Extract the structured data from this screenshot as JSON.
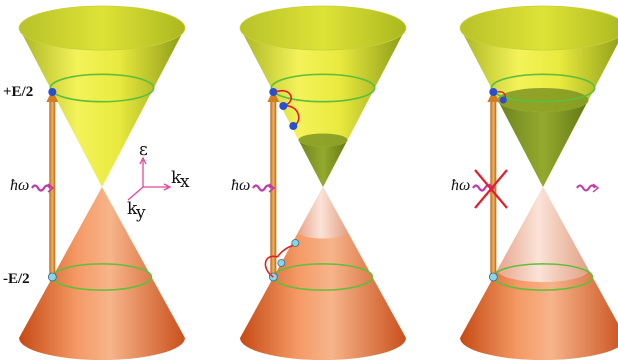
{
  "labels": {
    "energy_plus": "+E/2",
    "energy_minus": "-E/2",
    "photon": "ħω",
    "axis_energy": "ε",
    "axis_kx": "k",
    "axis_kx_sub": "x",
    "axis_ky": "k",
    "axis_ky_sub": "y"
  },
  "colors": {
    "upper_cone_light": "#f2f055",
    "upper_cone_dark": "#7a8d17",
    "lower_cone_light": "#ffd8c0",
    "lower_cone_dark": "#d2541d",
    "depleted_lower": "#f6d2c6",
    "filled_upper_green": "#6f8a1d",
    "ring_color": "#5fbf3a",
    "arrow_color": "#e0932f",
    "dot_blue": "#2a4fc8",
    "dot_cyan": "#8fd3e8",
    "relax_path": "#e02020",
    "photon_wave": "#c03aa8",
    "axis_color": "#e0489a",
    "block_cross": "#e0202a"
  },
  "panels": [
    {
      "id": "excitation",
      "has_axes": true,
      "has_relaxation": false,
      "blocked": false
    },
    {
      "id": "thermalization",
      "has_axes": false,
      "has_relaxation": true,
      "blocked": false
    },
    {
      "id": "pauli-blocking",
      "has_axes": false,
      "has_relaxation": false,
      "blocked": true
    }
  ]
}
